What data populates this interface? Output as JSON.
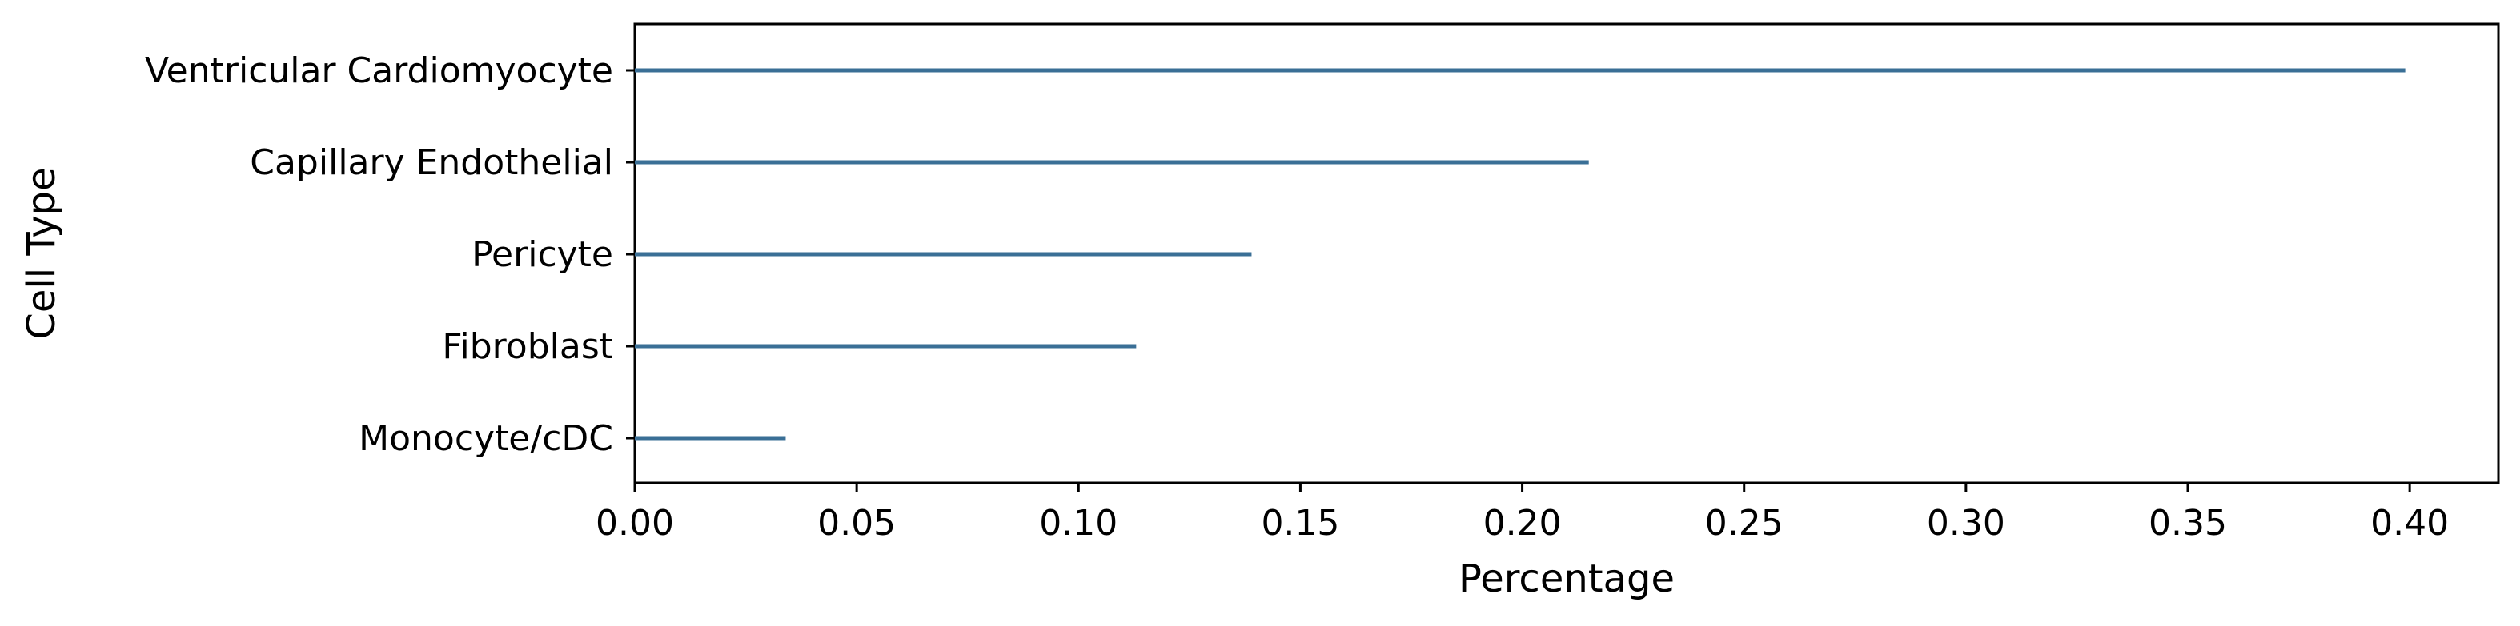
{
  "chart_data": {
    "type": "bar",
    "orientation": "horizontal",
    "categories": [
      "Ventricular Cardiomyocyte",
      "Capillary Endothelial",
      "Pericyte",
      "Fibroblast",
      "Monocyte/cDC"
    ],
    "values": [
      0.399,
      0.215,
      0.139,
      0.113,
      0.034
    ],
    "xlabel": "Percentage",
    "ylabel": "Cell Type",
    "xlim": [
      0.0,
      0.42
    ],
    "xticks": [
      "0.00",
      "0.05",
      "0.10",
      "0.15",
      "0.20",
      "0.25",
      "0.30",
      "0.35",
      "0.40"
    ],
    "xtick_values": [
      0.0,
      0.05,
      0.1,
      0.15,
      0.2,
      0.25,
      0.3,
      0.35,
      0.4
    ],
    "grid": false,
    "bar_color": "#3a6f96"
  }
}
